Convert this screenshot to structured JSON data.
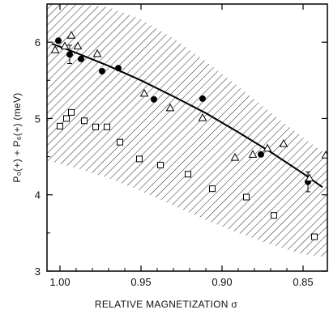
{
  "chart_data": {
    "type": "scatter",
    "xlabel": "RELATIVE MAGNETIZATION σ",
    "ylabel": "P₀(+) + P₆(+) (meV)",
    "x_reversed": true,
    "xlim": [
      1.008,
      0.835
    ],
    "ylim": [
      3,
      6.5
    ],
    "xticks": [
      "1.00",
      "0.95",
      "0.90",
      "0.85"
    ],
    "yticks": [
      "3",
      "4",
      "5",
      "6"
    ],
    "xtick_values": [
      1.0,
      0.95,
      0.9,
      0.85
    ],
    "ytick_values": [
      3,
      4,
      5,
      6
    ],
    "series": [
      {
        "marker": "filled-circle",
        "points": [
          {
            "x": 1.001,
            "y": 6.02
          },
          {
            "x": 0.994,
            "y": 5.84,
            "err": 0.12
          },
          {
            "x": 0.987,
            "y": 5.78
          },
          {
            "x": 0.974,
            "y": 5.62
          },
          {
            "x": 0.964,
            "y": 5.66
          },
          {
            "x": 0.942,
            "y": 5.25
          },
          {
            "x": 0.912,
            "y": 5.26
          },
          {
            "x": 0.876,
            "y": 4.53
          },
          {
            "x": 0.847,
            "y": 4.17,
            "err": 0.13
          }
        ]
      },
      {
        "marker": "open-triangle",
        "points": [
          {
            "x": 1.003,
            "y": 5.9
          },
          {
            "x": 0.997,
            "y": 5.95
          },
          {
            "x": 0.993,
            "y": 6.09
          },
          {
            "x": 0.989,
            "y": 5.95
          },
          {
            "x": 0.977,
            "y": 5.85
          },
          {
            "x": 0.948,
            "y": 5.33
          },
          {
            "x": 0.932,
            "y": 5.14
          },
          {
            "x": 0.912,
            "y": 5.01
          },
          {
            "x": 0.892,
            "y": 4.49
          },
          {
            "x": 0.881,
            "y": 4.53
          },
          {
            "x": 0.872,
            "y": 4.61
          },
          {
            "x": 0.862,
            "y": 4.67
          },
          {
            "x": 0.846,
            "y": 4.22
          },
          {
            "x": 0.836,
            "y": 4.52
          }
        ]
      },
      {
        "marker": "open-square",
        "points": [
          {
            "x": 1.0,
            "y": 4.9
          },
          {
            "x": 0.996,
            "y": 5.0
          },
          {
            "x": 0.993,
            "y": 5.08
          },
          {
            "x": 0.985,
            "y": 4.97
          },
          {
            "x": 0.978,
            "y": 4.89
          },
          {
            "x": 0.971,
            "y": 4.89
          },
          {
            "x": 0.963,
            "y": 4.69
          },
          {
            "x": 0.951,
            "y": 4.47
          },
          {
            "x": 0.938,
            "y": 4.39
          },
          {
            "x": 0.921,
            "y": 4.27
          },
          {
            "x": 0.906,
            "y": 4.08
          },
          {
            "x": 0.885,
            "y": 3.97
          },
          {
            "x": 0.868,
            "y": 3.73
          },
          {
            "x": 0.843,
            "y": 3.45
          }
        ]
      }
    ],
    "fit_curve": {
      "x": [
        1.005,
        0.99,
        0.97,
        0.95,
        0.93,
        0.91,
        0.89,
        0.87,
        0.85,
        0.838
      ],
      "y": [
        5.98,
        5.86,
        5.69,
        5.5,
        5.29,
        5.07,
        4.82,
        4.56,
        4.28,
        4.1
      ]
    },
    "band_upper": {
      "x": [
        1.008,
        0.99,
        0.97,
        0.95,
        0.93,
        0.91,
        0.89,
        0.87,
        0.85,
        0.835
      ],
      "y": [
        6.5,
        6.5,
        6.46,
        6.3,
        6.05,
        5.75,
        5.42,
        5.08,
        4.75,
        4.52
      ]
    },
    "band_lower": {
      "x": [
        1.008,
        0.99,
        0.97,
        0.95,
        0.93,
        0.91,
        0.89,
        0.87,
        0.85,
        0.835
      ],
      "y": [
        4.45,
        4.35,
        4.22,
        4.05,
        3.86,
        3.67,
        3.5,
        3.35,
        3.22,
        3.18
      ]
    },
    "grid": false,
    "legend": "none"
  }
}
